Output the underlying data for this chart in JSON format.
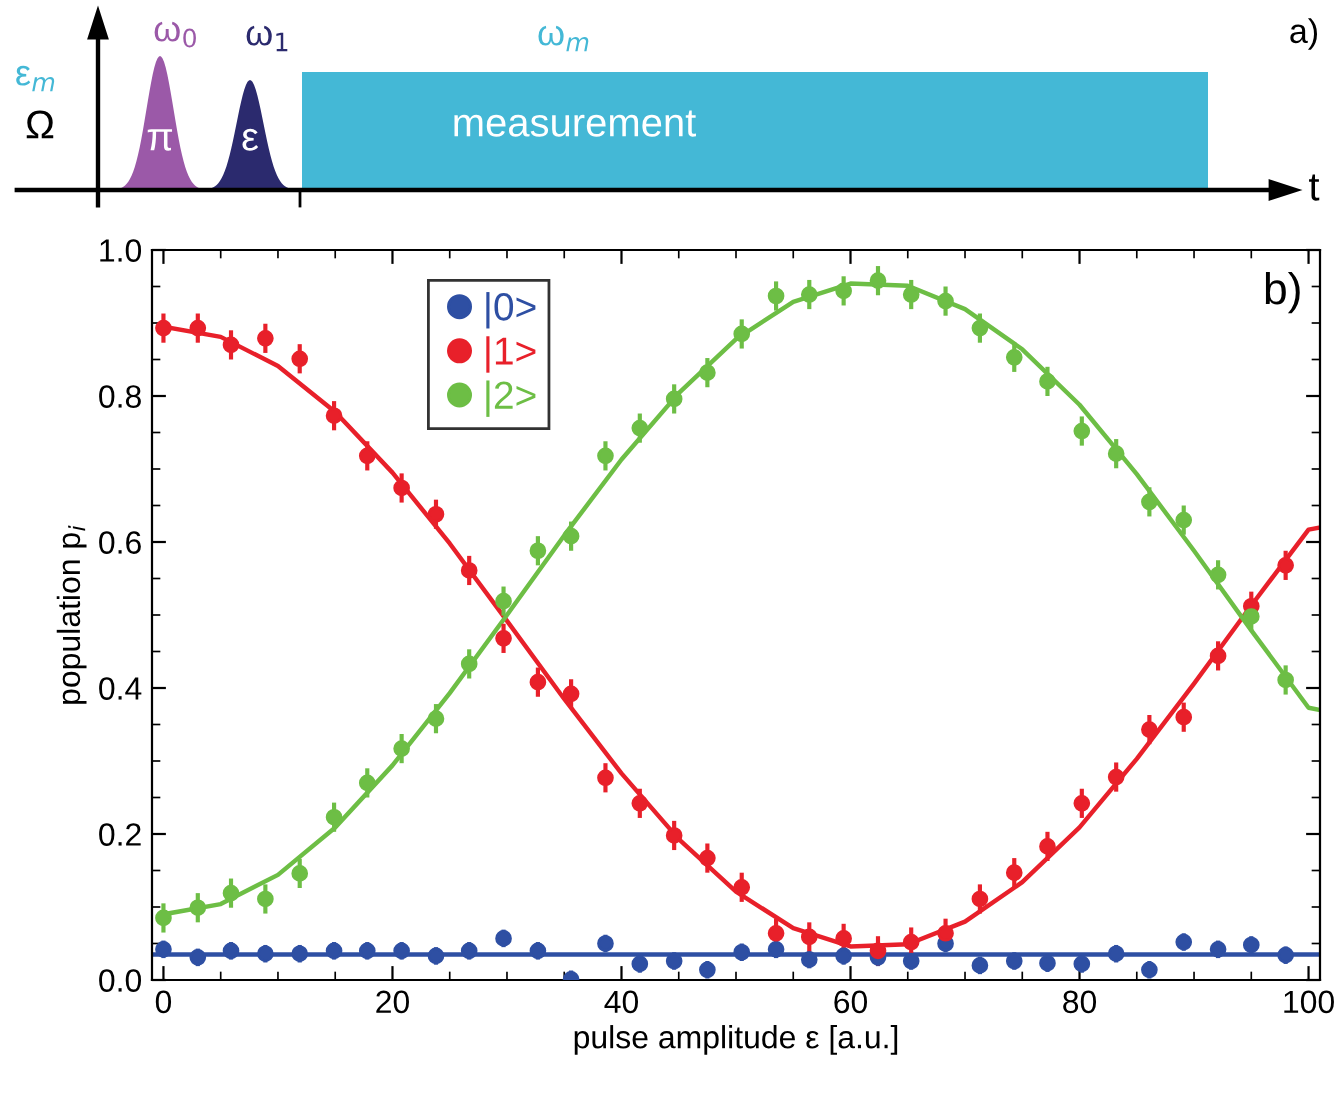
{
  "chart_data": [
    {
      "type": "other",
      "annotations": [
        "ε$_{m}$",
        "Ω",
        "ω$_{0}$",
        "ω$_{1}$",
        "ω$_{m}$",
        "π",
        "ε",
        "measurement",
        "t",
        "a)"
      ]
    },
    {
      "type": "scatter",
      "xlabel": "pulse amplitude ε [a.u.]",
      "ylabel": "population p$_{i}$",
      "annotations": [
        "b)"
      ],
      "x": [
        0,
        3.0,
        5.9,
        8.9,
        11.9,
        14.9,
        17.8,
        20.8,
        23.8,
        26.7,
        29.7,
        32.7,
        35.6,
        38.6,
        41.6,
        44.6,
        47.5,
        50.5,
        53.5,
        56.4,
        59.4,
        62.4,
        65.3,
        68.3,
        71.3,
        74.3,
        77.2,
        80.2,
        83.2,
        86.1,
        89.1,
        92.1,
        95.0,
        98.0
      ],
      "xlim": [
        -1,
        101
      ],
      "xticks": [
        0,
        20,
        40,
        60,
        80,
        100
      ],
      "ylim": [
        0,
        1
      ],
      "yticks": [
        {
          "value": 0,
          "label": "0.0"
        },
        {
          "value": 0.2,
          "label": "0.2"
        },
        {
          "value": 0.4,
          "label": "0.4"
        },
        {
          "value": 0.6,
          "label": "0.6"
        },
        {
          "value": 0.8,
          "label": "0.8"
        },
        {
          "value": 1,
          "label": "1.0"
        }
      ],
      "legend": "top",
      "marker": "circle",
      "grid": false,
      "series": [
        {
          "name": "|0>",
          "type": "scatter",
          "color": "#2e4fa3",
          "errors": [
            0.012,
            0.012,
            0.012,
            0.012,
            0.012,
            0.012,
            0.012,
            0.012,
            0.012,
            0.012,
            0.012,
            0.012,
            0.012,
            0.012,
            0.012,
            0.012,
            0.012,
            0.012,
            0.012,
            0.012,
            0.012,
            0.012,
            0.012,
            0.012,
            0.012,
            0.012,
            0.012,
            0.012,
            0.012,
            0.012,
            0.012,
            0.012,
            0.012,
            0.012
          ],
          "values": [
            0.042,
            0.031,
            0.04,
            0.036,
            0.036,
            0.04,
            0.04,
            0.04,
            0.033,
            0.04,
            0.057,
            0.04,
            0.001,
            0.05,
            0.022,
            0.026,
            0.014,
            0.038,
            0.042,
            0.028,
            0.033,
            0.031,
            0.026,
            0.05,
            0.02,
            0.026,
            0.023,
            0.022,
            0.036,
            0.014,
            0.052,
            0.042,
            0.048,
            0.034
          ]
        },
        {
          "name": "|1>",
          "type": "scatter",
          "color": "#e8202a",
          "errors": [
            0.02,
            0.02,
            0.02,
            0.02,
            0.02,
            0.02,
            0.02,
            0.02,
            0.02,
            0.02,
            0.02,
            0.02,
            0.02,
            0.02,
            0.02,
            0.02,
            0.02,
            0.02,
            0.02,
            0.02,
            0.02,
            0.02,
            0.02,
            0.02,
            0.02,
            0.02,
            0.02,
            0.02,
            0.02,
            0.02,
            0.02,
            0.02,
            0.02,
            0.02
          ],
          "values": [
            0.893,
            0.893,
            0.87,
            0.879,
            0.851,
            0.773,
            0.718,
            0.674,
            0.638,
            0.561,
            0.468,
            0.408,
            0.392,
            0.277,
            0.242,
            0.198,
            0.167,
            0.127,
            0.064,
            0.059,
            0.057,
            0.04,
            0.052,
            0.064,
            0.111,
            0.147,
            0.183,
            0.242,
            0.278,
            0.343,
            0.36,
            0.444,
            0.512,
            0.568
          ]
        },
        {
          "name": "|2>",
          "type": "scatter",
          "color": "#6dbe45",
          "errors": [
            0.02,
            0.02,
            0.02,
            0.02,
            0.02,
            0.02,
            0.02,
            0.02,
            0.02,
            0.02,
            0.02,
            0.02,
            0.02,
            0.02,
            0.02,
            0.02,
            0.02,
            0.02,
            0.02,
            0.02,
            0.02,
            0.02,
            0.02,
            0.02,
            0.02,
            0.02,
            0.02,
            0.02,
            0.02,
            0.02,
            0.02,
            0.02,
            0.02,
            0.02
          ],
          "values": [
            0.085,
            0.099,
            0.119,
            0.111,
            0.146,
            0.223,
            0.27,
            0.317,
            0.358,
            0.433,
            0.519,
            0.588,
            0.608,
            0.718,
            0.756,
            0.796,
            0.832,
            0.885,
            0.937,
            0.939,
            0.944,
            0.958,
            0.939,
            0.93,
            0.893,
            0.853,
            0.82,
            0.752,
            0.721,
            0.655,
            0.63,
            0.555,
            0.498,
            0.411
          ]
        },
        {
          "type": "line",
          "marker": "none",
          "color": "#2e4fa3",
          "x": [
            -1,
            101
          ],
          "values": [
            0.035,
            0.035
          ]
        },
        {
          "type": "line",
          "marker": "none",
          "color": "#e8202a",
          "x": [
            0,
            5,
            10,
            15,
            20,
            25,
            30,
            35,
            40,
            45,
            50,
            55,
            60,
            65,
            70,
            75,
            80,
            85,
            90,
            95,
            100,
            101
          ],
          "values": [
            0.895,
            0.881,
            0.841,
            0.778,
            0.695,
            0.598,
            0.492,
            0.385,
            0.283,
            0.193,
            0.121,
            0.071,
            0.046,
            0.049,
            0.08,
            0.134,
            0.209,
            0.303,
            0.406,
            0.513,
            0.617,
            0.62
          ]
        },
        {
          "type": "line",
          "marker": "none",
          "color": "#6dbe45",
          "x": [
            0,
            5,
            10,
            15,
            20,
            25,
            30,
            35,
            40,
            45,
            50,
            55,
            60,
            65,
            70,
            75,
            80,
            85,
            90,
            95,
            100,
            101
          ],
          "values": [
            0.09,
            0.104,
            0.144,
            0.209,
            0.294,
            0.393,
            0.5,
            0.609,
            0.713,
            0.804,
            0.878,
            0.929,
            0.954,
            0.951,
            0.919,
            0.864,
            0.788,
            0.693,
            0.588,
            0.479,
            0.373,
            0.37
          ]
        }
      ]
    }
  ]
}
